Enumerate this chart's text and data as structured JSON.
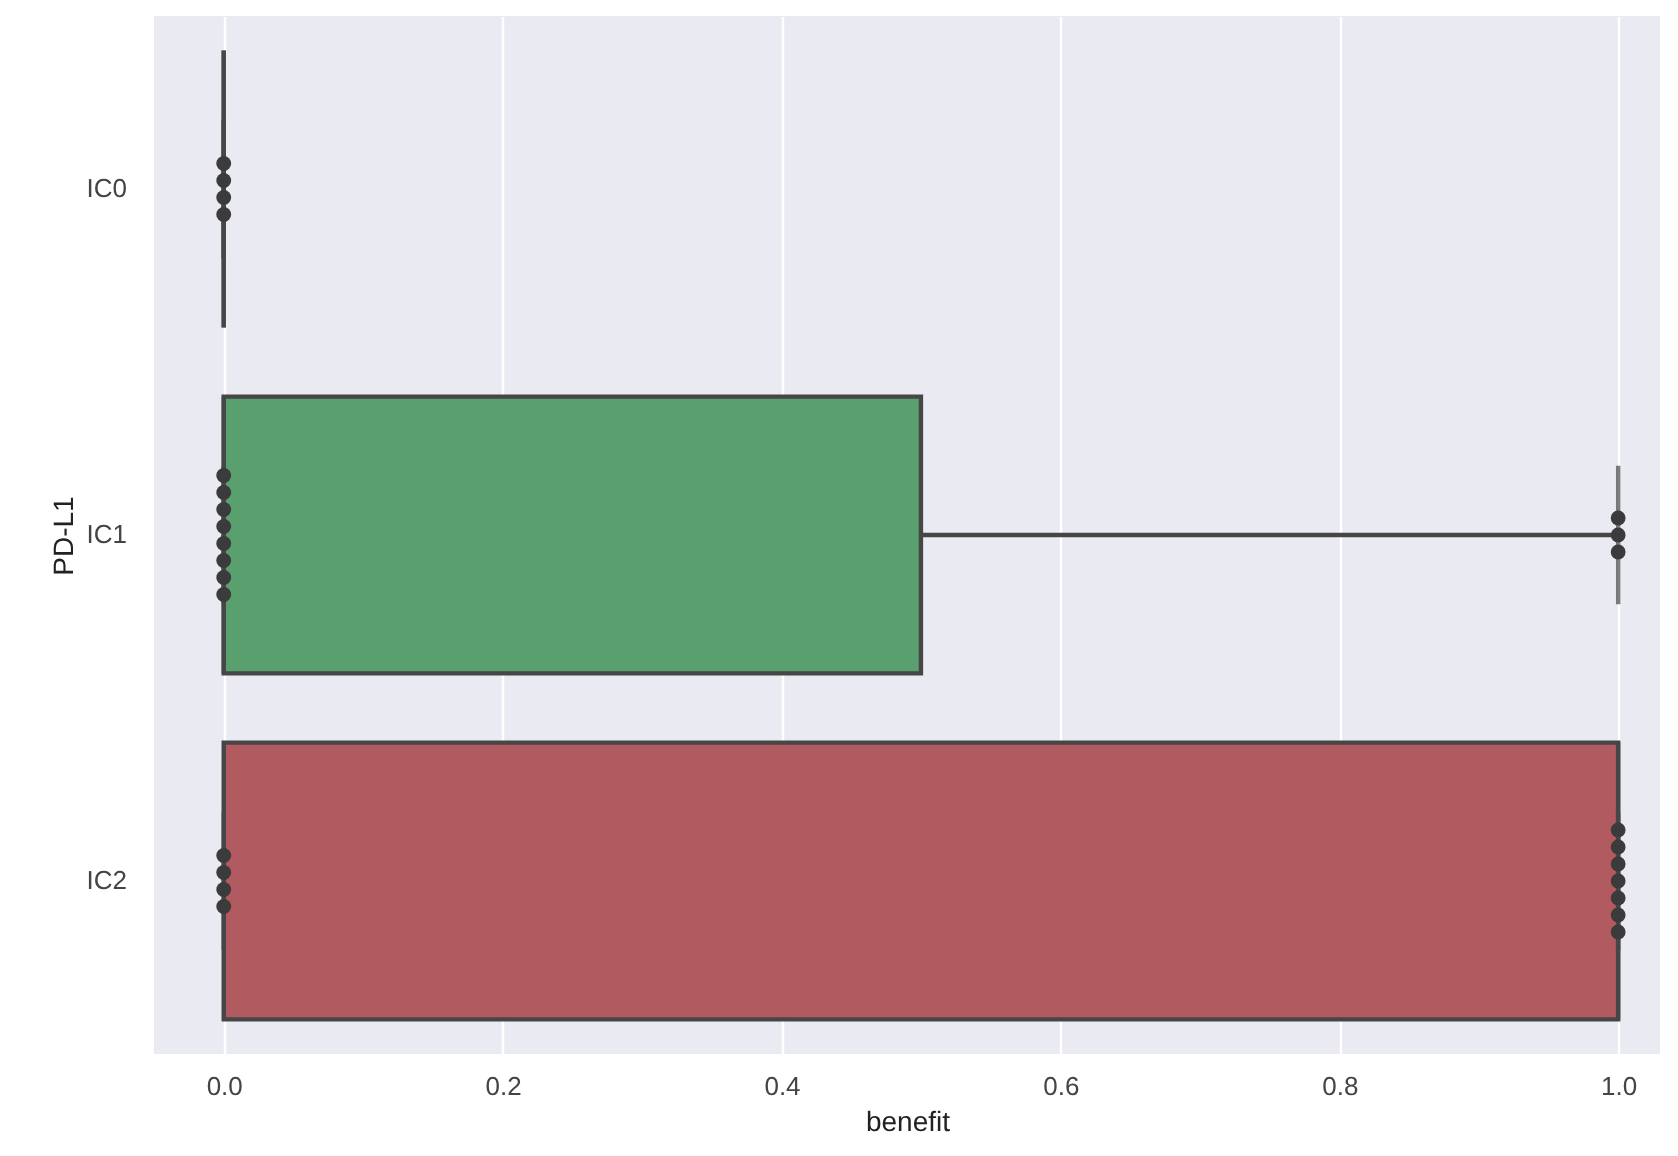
{
  "chart_data": {
    "type": "box",
    "orientation": "horizontal",
    "xlabel": "benefit",
    "ylabel": "PD-L1",
    "categories": [
      "IC0",
      "IC1",
      "IC2"
    ],
    "boxes": [
      {
        "low": 0,
        "q1": 0,
        "median": 0,
        "q3": 0,
        "high": 0
      },
      {
        "low": 0,
        "q1": 0,
        "median": 0,
        "q3": 0.5,
        "high": 1
      },
      {
        "low": 0,
        "q1": 0,
        "median": 1,
        "q3": 1,
        "high": 1
      }
    ],
    "colors": [
      "#464646",
      "#5a9f6e",
      "#b15a5f"
    ],
    "series": [
      {
        "type": "scatter",
        "color": "#3b3b3b",
        "x": [
          "IC0",
          "IC0",
          "IC0",
          "IC0",
          "IC1",
          "IC1",
          "IC1",
          "IC1",
          "IC1",
          "IC1",
          "IC1",
          "IC1",
          "IC1",
          "IC1",
          "IC1",
          "IC2",
          "IC2",
          "IC2",
          "IC2",
          "IC2",
          "IC2",
          "IC2",
          "IC2",
          "IC2",
          "IC2",
          "IC2"
        ],
        "values": [
          0,
          0,
          0,
          0,
          0,
          0,
          0,
          0,
          0,
          0,
          0,
          0,
          1,
          1,
          1,
          0,
          0,
          0,
          0,
          1,
          1,
          1,
          1,
          1,
          1,
          1
        ]
      }
    ],
    "xlim": [
      -0.05,
      1.03
    ],
    "xticks": [
      {
        "value": 0,
        "label": "0.0"
      },
      {
        "value": 0.2,
        "label": "0.2"
      },
      {
        "value": 0.4,
        "label": "0.4"
      },
      {
        "value": 0.6,
        "label": "0.6"
      },
      {
        "value": 0.8,
        "label": "0.8"
      },
      {
        "value": 1,
        "label": "1.0"
      }
    ],
    "grid": "x",
    "marker": "circle"
  }
}
